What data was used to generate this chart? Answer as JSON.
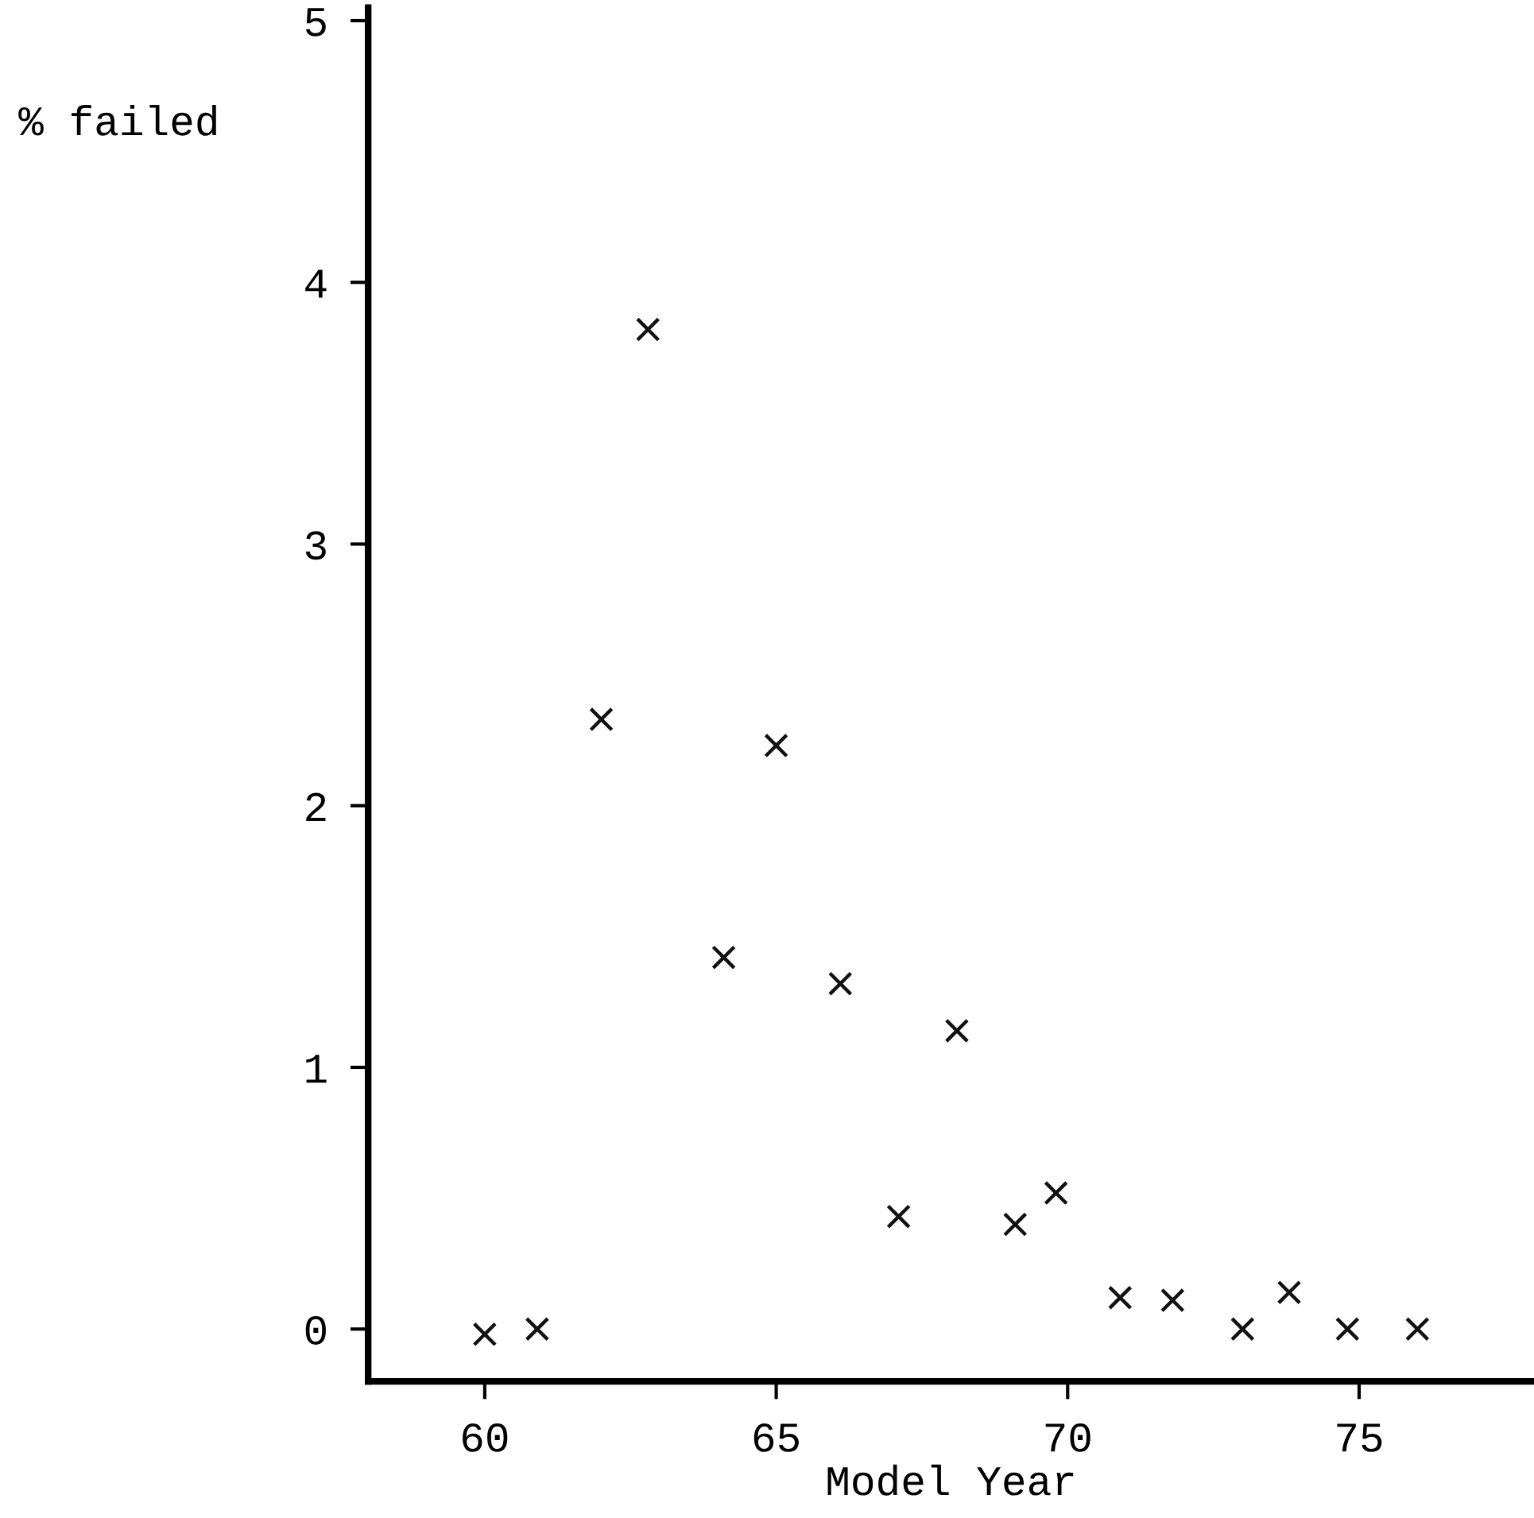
{
  "chart_data": {
    "type": "scatter",
    "xlabel": "Model Year",
    "ylabel": "% failed",
    "x": [
      60,
      60.9,
      62,
      62.8,
      64.1,
      65,
      66.1,
      67.1,
      68.1,
      69.1,
      69.8,
      70.9,
      71.8,
      73,
      73.8,
      74.8,
      76
    ],
    "series": [
      {
        "color": "#111111",
        "values": [
          -0.02,
          0,
          2.33,
          3.82,
          1.42,
          2.23,
          1.32,
          0.43,
          1.14,
          0.4,
          0.52,
          0.12,
          0.11,
          0,
          0.14,
          0,
          0
        ]
      }
    ],
    "xlim": [
      58,
      78
    ],
    "xticks": [
      60,
      65,
      70,
      75
    ],
    "ylim": [
      -0.2,
      5.05
    ],
    "yticks": [
      0,
      1,
      2,
      3,
      4,
      5
    ],
    "marker": "cross",
    "grid": false,
    "legend": false
  }
}
